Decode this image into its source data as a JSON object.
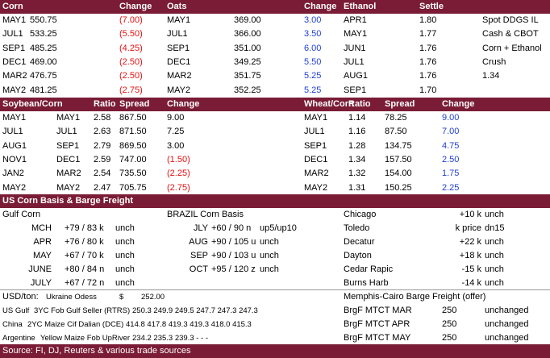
{
  "corn_oats_ethanol": {
    "headers": [
      "Corn",
      "Change",
      "Oats",
      "Change",
      "Ethanol",
      "Settle"
    ],
    "rows": [
      [
        "MAY1",
        "550.75",
        "(7.00)",
        "MAY1",
        "369.00",
        "3.00",
        "APR1",
        "1.80",
        "Spot DDGS IL"
      ],
      [
        "JUL1",
        "533.25",
        "(5.50)",
        "JUL1",
        "366.00",
        "3.50",
        "MAY1",
        "1.77",
        "Cash & CBOT"
      ],
      [
        "SEP1",
        "485.25",
        "(4.25)",
        "SEP1",
        "351.00",
        "6.00",
        "JUN1",
        "1.76",
        "Corn + Ethanol"
      ],
      [
        "DEC1",
        "469.00",
        "(2.50)",
        "DEC1",
        "349.25",
        "5.50",
        "JUL1",
        "1.76",
        "Crush"
      ],
      [
        "MAR2",
        "476.75",
        "(2.50)",
        "MAR2",
        "351.75",
        "5.25",
        "AUG1",
        "1.76",
        "1.34"
      ],
      [
        "MAY2",
        "481.25",
        "(2.75)",
        "MAY2",
        "352.25",
        "5.25",
        "SEP1",
        "1.70"
      ]
    ]
  },
  "spreads": {
    "headers": [
      "Soybean/Corn",
      "Ratio",
      "Spread",
      "Change",
      "Wheat/Corn",
      "Ratio",
      "Spread",
      "Change"
    ],
    "rows": [
      [
        "MAY1",
        "MAY1",
        "2.58",
        "867.50",
        "9.00",
        "MAY1",
        "1.14",
        "78.25",
        "9.00"
      ],
      [
        "JUL1",
        "JUL1",
        "2.63",
        "871.50",
        "7.25",
        "JUL1",
        "1.16",
        "87.50",
        "7.00"
      ],
      [
        "AUG1",
        "SEP1",
        "2.79",
        "869.50",
        "3.00",
        "SEP1",
        "1.28",
        "134.75",
        "4.75"
      ],
      [
        "NOV1",
        "DEC1",
        "2.59",
        "747.00",
        "(1.50)",
        "DEC1",
        "1.34",
        "157.50",
        "2.50"
      ],
      [
        "JAN2",
        "MAR2",
        "2.54",
        "735.50",
        "(2.25)",
        "MAR2",
        "1.32",
        "154.00",
        "1.75"
      ],
      [
        "MAY2",
        "MAY2",
        "2.47",
        "705.75",
        "(2.75)",
        "MAY2",
        "1.31",
        "150.25",
        "2.25"
      ]
    ]
  },
  "basis": {
    "title": "US Corn Basis & Barge Freight",
    "gulf_corn": {
      "title": "Gulf Corn",
      "rows": [
        [
          "MCH",
          "+79 / 83 k",
          "unch"
        ],
        [
          "APR",
          "+76 / 80 k",
          "unch"
        ],
        [
          "MAY",
          "+67 / 70 k",
          "unch"
        ],
        [
          "JUNE",
          "+80 / 84 n",
          "unch"
        ],
        [
          "JULY",
          "+67 / 72 n",
          "unch"
        ]
      ]
    },
    "brazil_corn_basis": {
      "title": "BRAZIL Corn Basis",
      "rows": [
        [
          "JLY",
          "+60 / 90 n",
          "up5/up10"
        ],
        [
          "AUG",
          "+90 / 105 u",
          "unch"
        ],
        [
          "SEP",
          "+90 / 103 u",
          "unch"
        ],
        [
          "OCT",
          "+95 / 120 z",
          "unch"
        ]
      ]
    },
    "interior": {
      "rows": [
        [
          "Chicago",
          "+10 k",
          "unch"
        ],
        [
          "Toledo",
          "k price",
          "dn15"
        ],
        [
          "Decatur",
          "+22 k",
          "unch"
        ],
        [
          "Dayton",
          "+18 k",
          "unch"
        ],
        [
          "Cedar Rapic",
          "-15 k",
          "unch"
        ],
        [
          "Burns Harb",
          "-14 k",
          "unch"
        ]
      ]
    }
  },
  "usd_ton": {
    "label": "USD/ton:",
    "origin": "Ukraine Odess",
    "currency": "$",
    "price": "252.00"
  },
  "exports": [
    {
      "origin": "US Gulf",
      "product": "3YC Fob Gulf Seller (RTRS)",
      "prices": "250.3 249.9 249.5 247.7 247.3 247.3"
    },
    {
      "origin": "China",
      "product": "2YC Maize Cif Dalian (DCE)",
      "prices": "414.8 417.8 419.3 419.3 418.0 415.3"
    },
    {
      "origin": "Argentine",
      "product": "Yellow Maize Fob UpRiver",
      "prices": "234.2 235.3 239.3 - - -"
    }
  ],
  "barge": {
    "title": "Memphis-Cairo Barge Freight (offer)",
    "rows": [
      [
        "BrgF MTCT MAR",
        "250",
        "unchanged"
      ],
      [
        "BrgF MTCT APR",
        "250",
        "unchanged"
      ],
      [
        "BrgF MTCT MAY",
        "250",
        "unchanged"
      ]
    ]
  },
  "source": "Source: FI, DJ, Reuters & various trade sources"
}
